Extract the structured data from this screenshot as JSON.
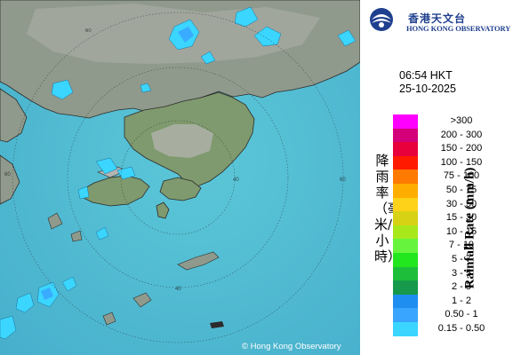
{
  "logo": {
    "name_zh": "香港天文台",
    "name_en": "HONG KONG OBSERVATORY"
  },
  "timestamp": {
    "time": "06:54 HKT",
    "date": "25-10-2025"
  },
  "legend": {
    "title_zh": "降雨率（毫米/小時）",
    "title_en": "Rainfall Rate (mm/h)",
    "items": [
      {
        "label": ">300",
        "color": "#ff00ff"
      },
      {
        "label": "200 - 300",
        "color": "#d4007a"
      },
      {
        "label": "150 - 200",
        "color": "#e8003c"
      },
      {
        "label": "100 - 150",
        "color": "#ff1a00"
      },
      {
        "label": "75 - 100",
        "color": "#ff7a00"
      },
      {
        "label": "50 - 75",
        "color": "#ffae00"
      },
      {
        "label": "30 - 50",
        "color": "#ffd21a"
      },
      {
        "label": "15 - 30",
        "color": "#d8d214"
      },
      {
        "label": "10 - 15",
        "color": "#a8e81a"
      },
      {
        "label": "7 - 10",
        "color": "#66f53c"
      },
      {
        "label": "5 - 7",
        "color": "#22e61e"
      },
      {
        "label": "3 - 5",
        "color": "#1dbf3a"
      },
      {
        "label": "2 - 3",
        "color": "#16994a"
      },
      {
        "label": "1 - 2",
        "color": "#1e8ef0"
      },
      {
        "label": "0.50 - 1",
        "color": "#3aa5ff"
      },
      {
        "label": "0.15 - 0.50",
        "color": "#3ad6ff"
      }
    ]
  },
  "map": {
    "range_ring_labels": [
      "40",
      "60",
      "60",
      "40",
      "60"
    ],
    "copyright": "© Hong Kong Observatory"
  }
}
